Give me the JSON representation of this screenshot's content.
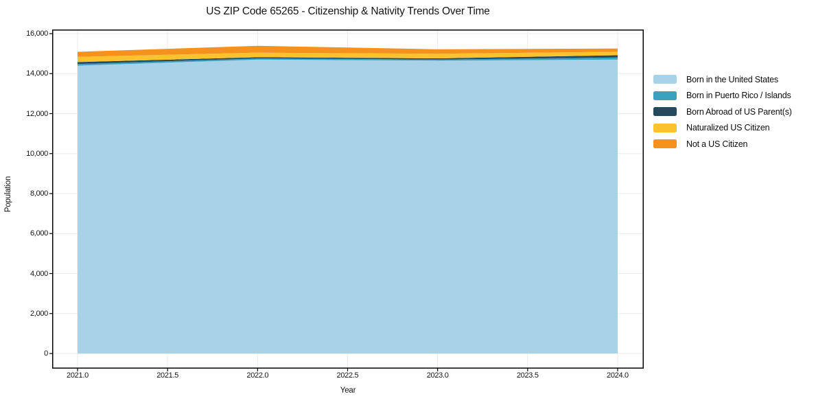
{
  "chart_data": {
    "type": "area",
    "stacked": true,
    "title": "US ZIP Code 65265 - Citizenship & Nativity Trends Over Time",
    "xlabel": "Year",
    "ylabel": "Population",
    "x": [
      2021,
      2022,
      2023,
      2024
    ],
    "series": [
      {
        "name": "Born in the United States",
        "color": "#a8d2e8",
        "values": [
          14400,
          14700,
          14650,
          14700
        ]
      },
      {
        "name": "Born in Puerto Rico / Islands",
        "color": "#3aa2c0",
        "values": [
          80,
          60,
          55,
          105
        ]
      },
      {
        "name": "Born Abroad of US Parent(s)",
        "color": "#25495d",
        "values": [
          100,
          60,
          60,
          115
        ]
      },
      {
        "name": "Naturalized US Citizen",
        "color": "#fcc22d",
        "values": [
          260,
          230,
          230,
          175
        ]
      },
      {
        "name": "Not a US Citizen",
        "color": "#f5921e",
        "values": [
          250,
          340,
          225,
          160
        ]
      }
    ],
    "stack_totals": [
      15090,
      15390,
      15220,
      15255
    ],
    "xlim": [
      2020.859,
      2024.145
    ],
    "ylim": [
      -755,
      16206
    ],
    "xticks": {
      "values": [
        2021,
        2021.5,
        2022,
        2022.5,
        2023,
        2023.5,
        2024
      ],
      "labels": [
        "2021.0",
        "2021.5",
        "2022.0",
        "2022.5",
        "2023.0",
        "2023.5",
        "2024.0"
      ]
    },
    "yticks": {
      "values": [
        0,
        2000,
        4000,
        6000,
        8000,
        10000,
        12000,
        14000,
        16000
      ],
      "labels": [
        "0",
        "2,000",
        "4,000",
        "6,000",
        "8,000",
        "10,000",
        "12,000",
        "14,000",
        "16,000"
      ]
    },
    "grid": true,
    "legend_position": "right-upper",
    "colors": {
      "grid": "#ebebeb",
      "axis": "#000000",
      "text": "#1a1a1a",
      "background": "#ffffff"
    }
  }
}
